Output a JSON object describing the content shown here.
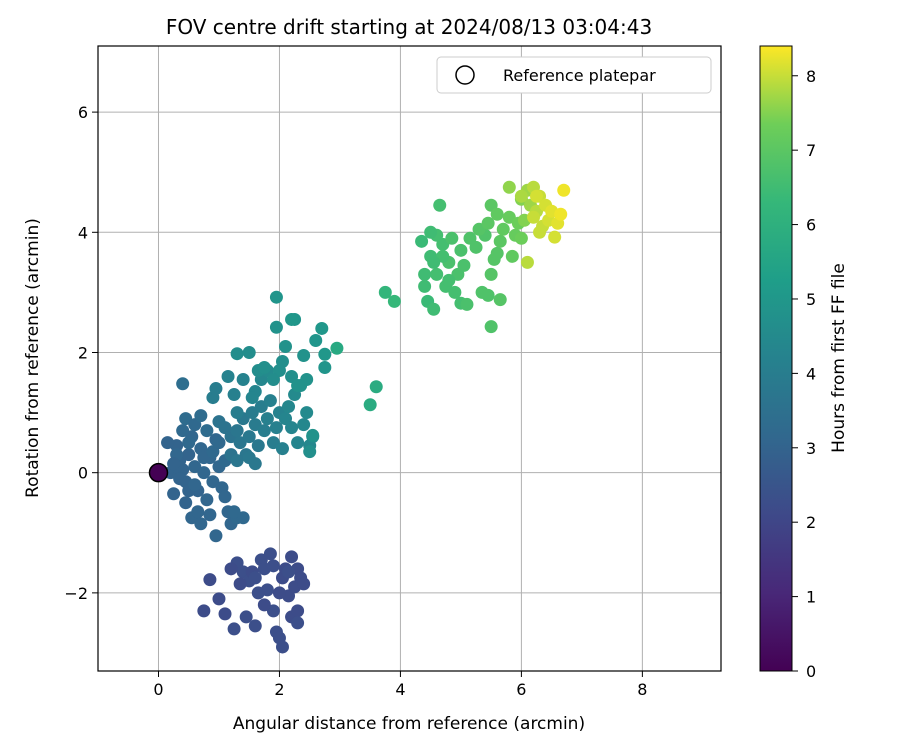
{
  "chart_data": {
    "type": "scatter",
    "title": "FOV centre drift starting at 2024/08/13 03:04:43",
    "xlabel": "Angular distance from reference (arcmin)",
    "ylabel": "Rotation from reference (arcmin)",
    "xlim": [
      -1.0,
      9.3
    ],
    "ylim": [
      -3.3,
      7.1
    ],
    "xticks": [
      0,
      2,
      4,
      6,
      8
    ],
    "yticks": [
      -2,
      0,
      2,
      4,
      6
    ],
    "xtick_labels": [
      "0",
      "2",
      "4",
      "6",
      "8"
    ],
    "ytick_labels": [
      "−2",
      "0",
      "2",
      "4",
      "6"
    ],
    "grid": true,
    "legend": {
      "placement": "top-right",
      "entries": [
        "Reference platepar"
      ]
    },
    "reference_point": {
      "x": 0,
      "y": 0,
      "c": 0
    },
    "colorbar": {
      "label": "Hours from first FF file",
      "range": [
        0,
        8.4
      ],
      "ticks": [
        0,
        1,
        2,
        3,
        4,
        5,
        6,
        7,
        8
      ],
      "tick_labels": [
        "0",
        "1",
        "2",
        "3",
        "4",
        "5",
        "6",
        "7",
        "8"
      ],
      "colormap": "viridis"
    },
    "points": [
      [
        0.85,
        -1.78,
        2.2
      ],
      [
        1.0,
        -2.1,
        2.2
      ],
      [
        0.75,
        -2.3,
        2.2
      ],
      [
        1.1,
        -2.35,
        2.2
      ],
      [
        1.25,
        -2.6,
        2.3
      ],
      [
        1.3,
        -1.5,
        2.3
      ],
      [
        1.4,
        -1.65,
        2.3
      ],
      [
        1.5,
        -1.8,
        2.3
      ],
      [
        1.45,
        -2.4,
        2.3
      ],
      [
        1.6,
        -2.55,
        2.3
      ],
      [
        1.7,
        -1.45,
        2.3
      ],
      [
        1.75,
        -1.6,
        2.3
      ],
      [
        1.8,
        -1.95,
        2.3
      ],
      [
        1.85,
        -1.35,
        2.3
      ],
      [
        1.9,
        -2.3,
        2.3
      ],
      [
        1.95,
        -2.65,
        2.3
      ],
      [
        2.0,
        -2.75,
        2.3
      ],
      [
        2.05,
        -1.75,
        2.2
      ],
      [
        2.1,
        -1.6,
        2.2
      ],
      [
        2.15,
        -2.05,
        2.2
      ],
      [
        2.2,
        -2.4,
        2.2
      ],
      [
        2.25,
        -1.9,
        2.2
      ],
      [
        2.3,
        -1.6,
        2.2
      ],
      [
        2.35,
        -1.75,
        2.2
      ],
      [
        2.4,
        -1.85,
        2.2
      ],
      [
        2.2,
        -1.4,
        2.2
      ],
      [
        2.05,
        -2.9,
        2.3
      ],
      [
        2.3,
        -2.3,
        2.2
      ],
      [
        2.3,
        -2.5,
        2.3
      ],
      [
        1.55,
        -1.65,
        2.2
      ],
      [
        1.65,
        -2.0,
        2.3
      ],
      [
        1.2,
        -1.6,
        2.2
      ],
      [
        1.35,
        -1.85,
        2.2
      ],
      [
        1.9,
        -1.55,
        2.3
      ],
      [
        2.0,
        -2.0,
        2.2
      ],
      [
        2.15,
        -1.65,
        2.3
      ],
      [
        1.75,
        -2.2,
        2.2
      ],
      [
        1.6,
        -1.75,
        2.3
      ],
      [
        0.3,
        0.45,
        3.0
      ],
      [
        0.35,
        0.2,
        3.0
      ],
      [
        0.4,
        0.05,
        3.0
      ],
      [
        0.45,
        -0.15,
        3.0
      ],
      [
        0.5,
        0.3,
        3.0
      ],
      [
        0.55,
        0.6,
        3.1
      ],
      [
        0.6,
        0.1,
        3.1
      ],
      [
        0.65,
        -0.3,
        3.0
      ],
      [
        0.7,
        0.4,
        3.1
      ],
      [
        0.75,
        0.0,
        3.1
      ],
      [
        0.8,
        -0.45,
        3.1
      ],
      [
        0.85,
        0.25,
        3.1
      ],
      [
        0.9,
        -0.15,
        3.1
      ],
      [
        0.95,
        0.55,
        3.1
      ],
      [
        1.0,
        0.1,
        3.1
      ],
      [
        1.05,
        -0.25,
        3.1
      ],
      [
        1.1,
        -0.4,
        3.1
      ],
      [
        0.2,
        0.0,
        3.0
      ],
      [
        0.25,
        -0.35,
        3.0
      ],
      [
        0.3,
        0.1,
        3.0
      ],
      [
        0.4,
        0.7,
        3.2
      ],
      [
        0.5,
        -0.3,
        3.0
      ],
      [
        0.55,
        -0.75,
        3.1
      ],
      [
        0.65,
        -0.65,
        3.1
      ],
      [
        0.7,
        -0.85,
        3.1
      ],
      [
        0.85,
        -0.7,
        3.1
      ],
      [
        0.95,
        -1.05,
        3.1
      ],
      [
        1.15,
        -0.65,
        3.1
      ],
      [
        1.2,
        -0.85,
        3.1
      ],
      [
        1.3,
        -0.75,
        3.2
      ],
      [
        1.4,
        -0.75,
        3.2
      ],
      [
        1.25,
        -0.65,
        3.2
      ],
      [
        0.45,
        0.9,
        3.3
      ],
      [
        0.6,
        0.8,
        3.2
      ],
      [
        0.7,
        0.95,
        3.3
      ],
      [
        0.8,
        0.7,
        3.3
      ],
      [
        0.5,
        0.5,
        3.2
      ],
      [
        0.3,
        0.3,
        3.1
      ],
      [
        0.35,
        -0.1,
        3.0
      ],
      [
        0.6,
        -0.2,
        3.1
      ],
      [
        0.75,
        0.25,
        3.1
      ],
      [
        0.9,
        0.35,
        3.2
      ],
      [
        1.0,
        0.5,
        3.2
      ],
      [
        1.1,
        0.2,
        3.2
      ],
      [
        0.15,
        0.5,
        3.0
      ],
      [
        0.25,
        0.15,
        3.0
      ],
      [
        0.45,
        -0.5,
        3.0
      ],
      [
        0.4,
        1.48,
        3.4
      ],
      [
        1.0,
        0.85,
        3.6
      ],
      [
        1.1,
        0.75,
        3.6
      ],
      [
        1.2,
        0.6,
        3.6
      ],
      [
        1.3,
        0.7,
        3.7
      ],
      [
        1.35,
        0.5,
        3.7
      ],
      [
        1.4,
        0.9,
        3.8
      ],
      [
        1.45,
        0.3,
        3.7
      ],
      [
        1.5,
        0.6,
        3.8
      ],
      [
        1.55,
        1.0,
        3.9
      ],
      [
        1.6,
        0.8,
        3.9
      ],
      [
        1.65,
        0.45,
        3.8
      ],
      [
        1.7,
        1.1,
        4.0
      ],
      [
        1.75,
        0.7,
        4.0
      ],
      [
        1.8,
        0.9,
        4.1
      ],
      [
        1.85,
        1.2,
        4.1
      ],
      [
        1.9,
        0.5,
        4.0
      ],
      [
        1.95,
        0.75,
        4.1
      ],
      [
        2.0,
        1.0,
        4.2
      ],
      [
        1.2,
        0.3,
        3.6
      ],
      [
        1.3,
        0.2,
        3.7
      ],
      [
        1.15,
        1.6,
        4.2
      ],
      [
        0.9,
        1.25,
        4.0
      ],
      [
        0.95,
        1.4,
        4.0
      ],
      [
        1.25,
        1.3,
        4.1
      ],
      [
        1.6,
        1.35,
        4.3
      ],
      [
        1.7,
        1.55,
        4.4
      ],
      [
        1.8,
        1.7,
        4.5
      ],
      [
        1.3,
        1.0,
        4.0
      ],
      [
        1.5,
        0.25,
        3.8
      ],
      [
        1.6,
        0.15,
        3.8
      ],
      [
        2.05,
        0.4,
        4.1
      ],
      [
        2.1,
        0.9,
        4.3
      ],
      [
        2.15,
        1.1,
        4.4
      ],
      [
        2.2,
        0.75,
        4.3
      ],
      [
        2.3,
        0.5,
        4.3
      ],
      [
        2.4,
        0.8,
        4.4
      ],
      [
        2.45,
        1.0,
        4.5
      ],
      [
        2.5,
        0.45,
        4.4
      ],
      [
        2.55,
        0.6,
        4.5
      ],
      [
        1.4,
        1.55,
        4.2
      ],
      [
        1.55,
        1.25,
        4.3
      ],
      [
        2.25,
        1.3,
        4.5
      ],
      [
        1.3,
        1.98,
        4.6
      ],
      [
        1.5,
        2.0,
        4.6
      ],
      [
        1.65,
        1.7,
        4.6
      ],
      [
        1.75,
        1.75,
        4.7
      ],
      [
        1.95,
        2.42,
        4.8
      ],
      [
        1.95,
        2.92,
        4.9
      ],
      [
        2.05,
        1.85,
        4.7
      ],
      [
        2.1,
        2.1,
        4.8
      ],
      [
        2.2,
        1.6,
        4.7
      ],
      [
        2.25,
        2.55,
        4.9
      ],
      [
        2.35,
        1.45,
        4.8
      ],
      [
        2.4,
        1.95,
        4.8
      ],
      [
        2.45,
        1.55,
        4.8
      ],
      [
        2.6,
        2.2,
        4.9
      ],
      [
        2.7,
        2.4,
        5.0
      ],
      [
        2.75,
        1.75,
        4.9
      ],
      [
        2.75,
        1.97,
        5.0
      ],
      [
        2.2,
        2.55,
        5.0
      ],
      [
        2.5,
        0.35,
        4.7
      ],
      [
        2.55,
        0.62,
        4.8
      ],
      [
        2.3,
        1.45,
        4.8
      ],
      [
        2.0,
        1.7,
        4.7
      ],
      [
        1.9,
        1.55,
        4.6
      ],
      [
        2.95,
        2.07,
        5.7
      ],
      [
        3.5,
        1.13,
        5.8
      ],
      [
        3.6,
        1.43,
        5.8
      ],
      [
        3.75,
        3.0,
        6.2
      ],
      [
        3.9,
        2.85,
        6.3
      ],
      [
        4.35,
        3.85,
        6.4
      ],
      [
        4.4,
        3.3,
        6.5
      ],
      [
        4.45,
        2.85,
        6.4
      ],
      [
        4.5,
        3.6,
        6.5
      ],
      [
        4.55,
        2.72,
        6.5
      ],
      [
        4.6,
        3.95,
        6.6
      ],
      [
        4.6,
        3.3,
        6.6
      ],
      [
        4.65,
        4.45,
        6.6
      ],
      [
        4.7,
        3.8,
        6.6
      ],
      [
        4.75,
        3.1,
        6.6
      ],
      [
        4.8,
        3.5,
        6.7
      ],
      [
        4.85,
        3.9,
        6.7
      ],
      [
        4.9,
        3.0,
        6.6
      ],
      [
        4.95,
        3.3,
        6.7
      ],
      [
        5.0,
        2.82,
        6.6
      ],
      [
        5.0,
        3.7,
        6.7
      ],
      [
        5.05,
        3.45,
        6.7
      ],
      [
        5.1,
        2.8,
        6.7
      ],
      [
        4.4,
        3.1,
        6.5
      ],
      [
        4.5,
        4.0,
        6.5
      ],
      [
        4.7,
        3.6,
        6.6
      ],
      [
        4.8,
        3.2,
        6.6
      ],
      [
        4.55,
        3.5,
        6.5
      ],
      [
        5.35,
        3.0,
        6.8
      ],
      [
        5.4,
        3.95,
        6.8
      ],
      [
        5.45,
        2.95,
        6.8
      ],
      [
        5.5,
        3.3,
        6.9
      ],
      [
        5.5,
        2.43,
        6.8
      ],
      [
        5.55,
        3.55,
        6.9
      ],
      [
        5.6,
        3.65,
        6.9
      ],
      [
        5.65,
        2.88,
        6.9
      ],
      [
        5.15,
        3.9,
        6.8
      ],
      [
        5.25,
        3.75,
        6.8
      ],
      [
        5.3,
        4.05,
        6.9
      ],
      [
        5.45,
        4.15,
        7.0
      ],
      [
        5.5,
        4.45,
        7.0
      ],
      [
        5.6,
        4.3,
        7.1
      ],
      [
        5.65,
        3.85,
        7.0
      ],
      [
        5.7,
        4.05,
        7.1
      ],
      [
        5.8,
        4.25,
        7.2
      ],
      [
        5.85,
        3.6,
        7.1
      ],
      [
        5.9,
        3.95,
        7.2
      ],
      [
        5.95,
        4.15,
        7.3
      ],
      [
        6.0,
        3.9,
        7.3
      ],
      [
        6.0,
        4.55,
        7.5
      ],
      [
        6.05,
        4.2,
        7.5
      ],
      [
        6.1,
        4.7,
        7.7
      ],
      [
        6.15,
        4.45,
        7.7
      ],
      [
        6.2,
        4.75,
        7.9
      ],
      [
        6.25,
        4.35,
        7.9
      ],
      [
        6.3,
        4.6,
        8.0
      ],
      [
        6.35,
        4.1,
        8.0
      ],
      [
        6.4,
        4.45,
        8.1
      ],
      [
        6.45,
        4.2,
        8.1
      ],
      [
        6.5,
        4.35,
        8.2
      ],
      [
        6.55,
        3.92,
        8.1
      ],
      [
        6.6,
        4.15,
        8.2
      ],
      [
        6.65,
        4.3,
        8.3
      ],
      [
        6.7,
        4.7,
        8.3
      ],
      [
        6.1,
        3.5,
        7.9
      ],
      [
        6.3,
        4.0,
        8.0
      ],
      [
        6.2,
        4.25,
        8.0
      ],
      [
        5.8,
        4.75,
        7.6
      ],
      [
        6.0,
        4.6,
        7.8
      ],
      [
        6.25,
        4.6,
        8.1
      ]
    ]
  }
}
